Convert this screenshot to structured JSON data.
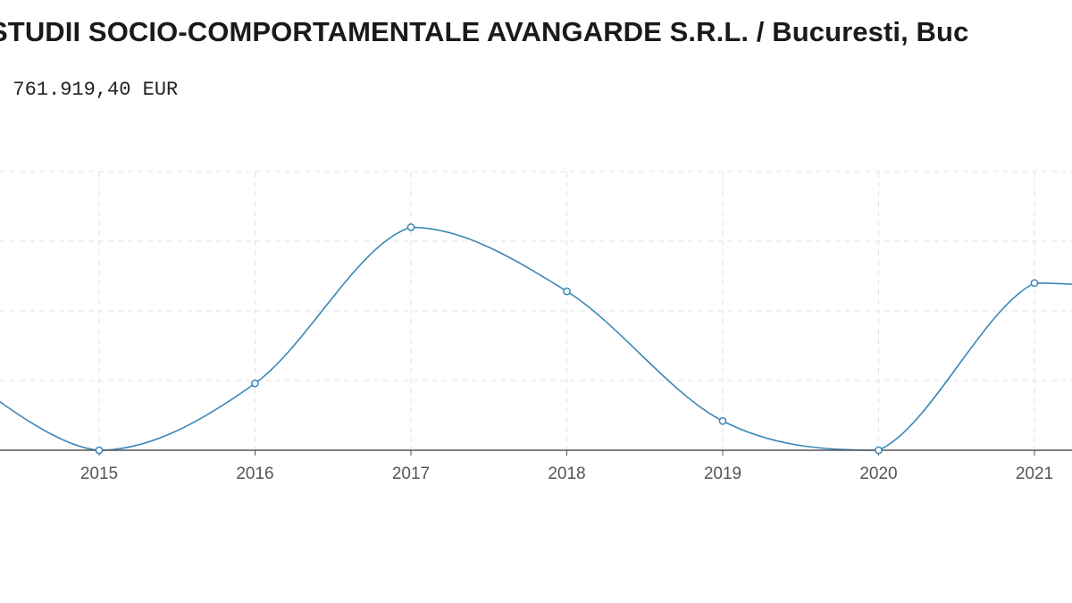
{
  "header": {
    "title": "STUDII SOCIO-COMPORTAMENTALE AVANGARDE S.R.L. / Bucuresti, Buc",
    "subtitle": "/ 761.919,40 EUR"
  },
  "colors": {
    "line": "#3a87b8",
    "axis": "#555555",
    "grid": "#e3e3e3",
    "point_fill": "#ffffff"
  },
  "chart_data": {
    "type": "line",
    "title": "",
    "xlabel": "",
    "ylabel": "",
    "categories": [
      "2015",
      "2016",
      "2017",
      "2018",
      "2019",
      "2020",
      "2021"
    ],
    "series": [
      {
        "values": [
          0,
          2.4,
          8.0,
          5.7,
          1.05,
          0,
          6.0
        ]
      }
    ],
    "ylim": [
      0,
      10
    ],
    "grid": true,
    "y_tick_labels_visible": false,
    "smoothed": true
  }
}
